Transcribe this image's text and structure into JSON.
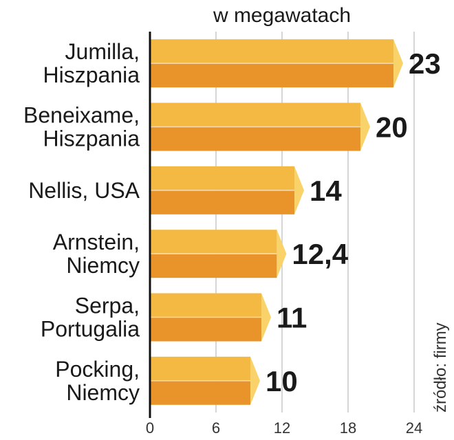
{
  "chart_data": {
    "type": "bar",
    "orientation": "horizontal",
    "unit_label": "w megawatach",
    "source": "źródło: firmy",
    "categories": [
      [
        "Jumilla,",
        "Hiszpania"
      ],
      [
        "Beneixame,",
        "Hiszpania"
      ],
      [
        "Nellis, USA"
      ],
      [
        "Arnstein,",
        "Niemcy"
      ],
      [
        "Serpa,",
        "Portugalia"
      ],
      [
        "Pocking,",
        "Niemcy"
      ]
    ],
    "values": [
      23,
      20,
      14,
      12.4,
      11,
      10
    ],
    "value_labels": [
      "23",
      "20",
      "14",
      "12,4",
      "11",
      "10"
    ],
    "xticks": [
      0,
      6,
      12,
      18,
      24
    ],
    "xlim": [
      0,
      24
    ],
    "grid": true,
    "colors": {
      "bar_top": "#f4b942",
      "bar_bottom": "#e8942a",
      "bar_cap": "#f9d36a",
      "grid": "#c8c8c8",
      "axis": "#111111",
      "text": "#1a1a1a"
    }
  }
}
